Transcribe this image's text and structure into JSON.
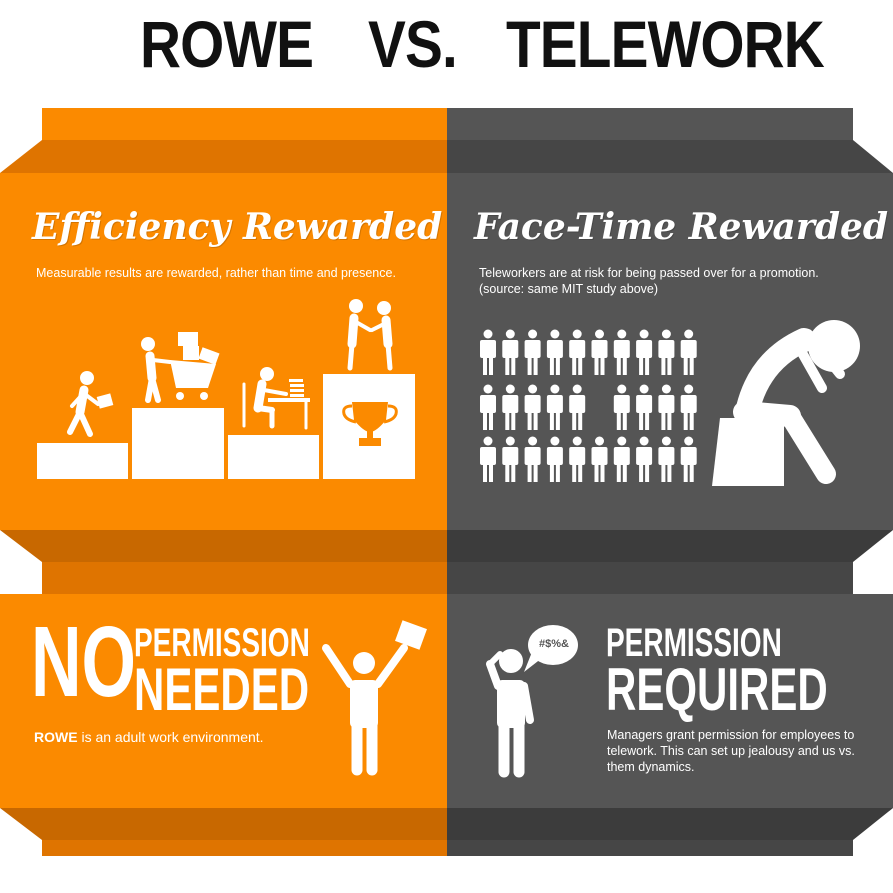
{
  "title": {
    "left": "ROWE",
    "vs": "VS.",
    "right": "TELEWORK"
  },
  "colors": {
    "orange": "#fb8a00",
    "orange_dark": "#df7400",
    "orange_darker": "#c86800",
    "gray": "#555555",
    "gray_dark": "#464646",
    "gray_darker": "#3c3c3c"
  },
  "panels": {
    "efficiency": {
      "heading": "Efficiency Rewarded",
      "text": "Measurable results are rewarded, rather than time and presence."
    },
    "facetime": {
      "heading": "Face-Time Rewarded",
      "text_line1": "Teleworkers are at risk for being passed over for a promotion.",
      "text_line2": "(source: same MIT study above)"
    },
    "no_permission": {
      "big": "NO",
      "line1": "PERMISSION",
      "line2": "NEEDED",
      "text_bold": "ROWE",
      "text_rest": " is an adult work environment."
    },
    "permission_required": {
      "line1": "PERMISSION",
      "line2": "REQUIRED",
      "text_line1": "Managers grant permission for employees to",
      "text_line2": "telework. This can set up jealousy and us vs.",
      "text_line3": "them dynamics.",
      "speech": "#$%&"
    }
  },
  "icons": [
    "walking-person-icon",
    "cart-person-icon",
    "desk-worker-icon",
    "handshake-icon",
    "trophy-icon",
    "crowd-icon",
    "sad-person-icon",
    "celebrating-person-icon",
    "phone-person-icon"
  ]
}
